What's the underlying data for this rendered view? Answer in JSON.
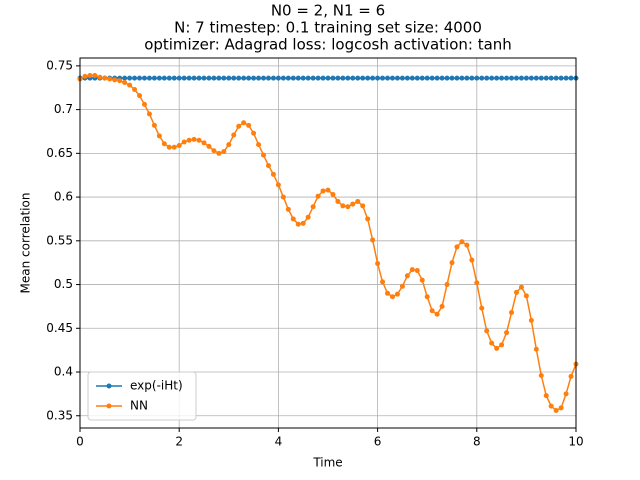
{
  "chart_data": {
    "type": "line",
    "title": [
      "N0 = 2, N1 = 6",
      "N: 7 timestep: 0.1 training set size: 4000",
      "optimizer: Adagrad loss: logcosh activation: tanh"
    ],
    "xlabel": "Time",
    "ylabel": "Mean correlation",
    "x": [
      0,
      0.1,
      0.2,
      0.3,
      0.4,
      0.5,
      0.6,
      0.7,
      0.8,
      0.9,
      1,
      1.1,
      1.2,
      1.3,
      1.4,
      1.5,
      1.6,
      1.7,
      1.8,
      1.9,
      2,
      2.1,
      2.2,
      2.3,
      2.4,
      2.5,
      2.6,
      2.7,
      2.8,
      2.9,
      3,
      3.1,
      3.2,
      3.3,
      3.4,
      3.5,
      3.6,
      3.7,
      3.8,
      3.9,
      4,
      4.1,
      4.2,
      4.3,
      4.4,
      4.5,
      4.6,
      4.7,
      4.8,
      4.9,
      5,
      5.1,
      5.2,
      5.3,
      5.4,
      5.5,
      5.6,
      5.7,
      5.8,
      5.9,
      6,
      6.1,
      6.2,
      6.3,
      6.4,
      6.5,
      6.6,
      6.7,
      6.8,
      6.9,
      7,
      7.1,
      7.2,
      7.3,
      7.4,
      7.5,
      7.6,
      7.7,
      7.8,
      7.9,
      8,
      8.1,
      8.2,
      8.3,
      8.4,
      8.5,
      8.6,
      8.7,
      8.8,
      8.9,
      9,
      9.1,
      9.2,
      9.3,
      9.4,
      9.5,
      9.6,
      9.7,
      9.8,
      9.9,
      10
    ],
    "series": [
      {
        "name": "exp(-iHt)",
        "color": "#1f77b4",
        "values": [
          0.736,
          0.736,
          0.736,
          0.736,
          0.736,
          0.736,
          0.736,
          0.736,
          0.736,
          0.736,
          0.736,
          0.736,
          0.736,
          0.736,
          0.736,
          0.736,
          0.736,
          0.736,
          0.736,
          0.736,
          0.736,
          0.736,
          0.736,
          0.736,
          0.736,
          0.736,
          0.736,
          0.736,
          0.736,
          0.736,
          0.736,
          0.736,
          0.736,
          0.736,
          0.736,
          0.736,
          0.736,
          0.736,
          0.736,
          0.736,
          0.736,
          0.736,
          0.736,
          0.736,
          0.736,
          0.736,
          0.736,
          0.736,
          0.736,
          0.736,
          0.736,
          0.736,
          0.736,
          0.736,
          0.736,
          0.736,
          0.736,
          0.736,
          0.736,
          0.736,
          0.736,
          0.736,
          0.736,
          0.736,
          0.736,
          0.736,
          0.736,
          0.736,
          0.736,
          0.736,
          0.736,
          0.736,
          0.736,
          0.736,
          0.736,
          0.736,
          0.736,
          0.736,
          0.736,
          0.736,
          0.736,
          0.736,
          0.736,
          0.736,
          0.736,
          0.736,
          0.736,
          0.736,
          0.736,
          0.736,
          0.736,
          0.736,
          0.736,
          0.736,
          0.736,
          0.736,
          0.736,
          0.736,
          0.736,
          0.736,
          0.736
        ]
      },
      {
        "name": "NN",
        "color": "#ff7f0e",
        "values": [
          0.735,
          0.738,
          0.739,
          0.739,
          0.737,
          0.736,
          0.735,
          0.734,
          0.733,
          0.731,
          0.728,
          0.723,
          0.716,
          0.706,
          0.695,
          0.682,
          0.67,
          0.661,
          0.657,
          0.657,
          0.659,
          0.663,
          0.665,
          0.666,
          0.665,
          0.662,
          0.658,
          0.653,
          0.65,
          0.652,
          0.66,
          0.671,
          0.681,
          0.685,
          0.682,
          0.673,
          0.66,
          0.648,
          0.636,
          0.626,
          0.614,
          0.6,
          0.586,
          0.575,
          0.569,
          0.57,
          0.577,
          0.589,
          0.601,
          0.607,
          0.608,
          0.603,
          0.595,
          0.59,
          0.589,
          0.592,
          0.595,
          0.59,
          0.575,
          0.551,
          0.524,
          0.503,
          0.49,
          0.486,
          0.489,
          0.498,
          0.51,
          0.517,
          0.516,
          0.505,
          0.486,
          0.47,
          0.466,
          0.475,
          0.5,
          0.525,
          0.543,
          0.549,
          0.545,
          0.528,
          0.502,
          0.473,
          0.447,
          0.433,
          0.427,
          0.431,
          0.445,
          0.468,
          0.491,
          0.497,
          0.487,
          0.459,
          0.426,
          0.396,
          0.373,
          0.361,
          0.356,
          0.359,
          0.375,
          0.395,
          0.409
        ]
      }
    ],
    "xlim": [
      0,
      10
    ],
    "xticks": [
      0,
      2,
      4,
      6,
      8,
      10
    ],
    "ylim": [
      0.336,
      0.759
    ],
    "yticks": [
      0.35,
      0.4,
      0.45,
      0.5,
      0.55,
      0.6,
      0.65,
      0.7,
      0.75
    ],
    "grid": true,
    "legend": "lower left"
  }
}
